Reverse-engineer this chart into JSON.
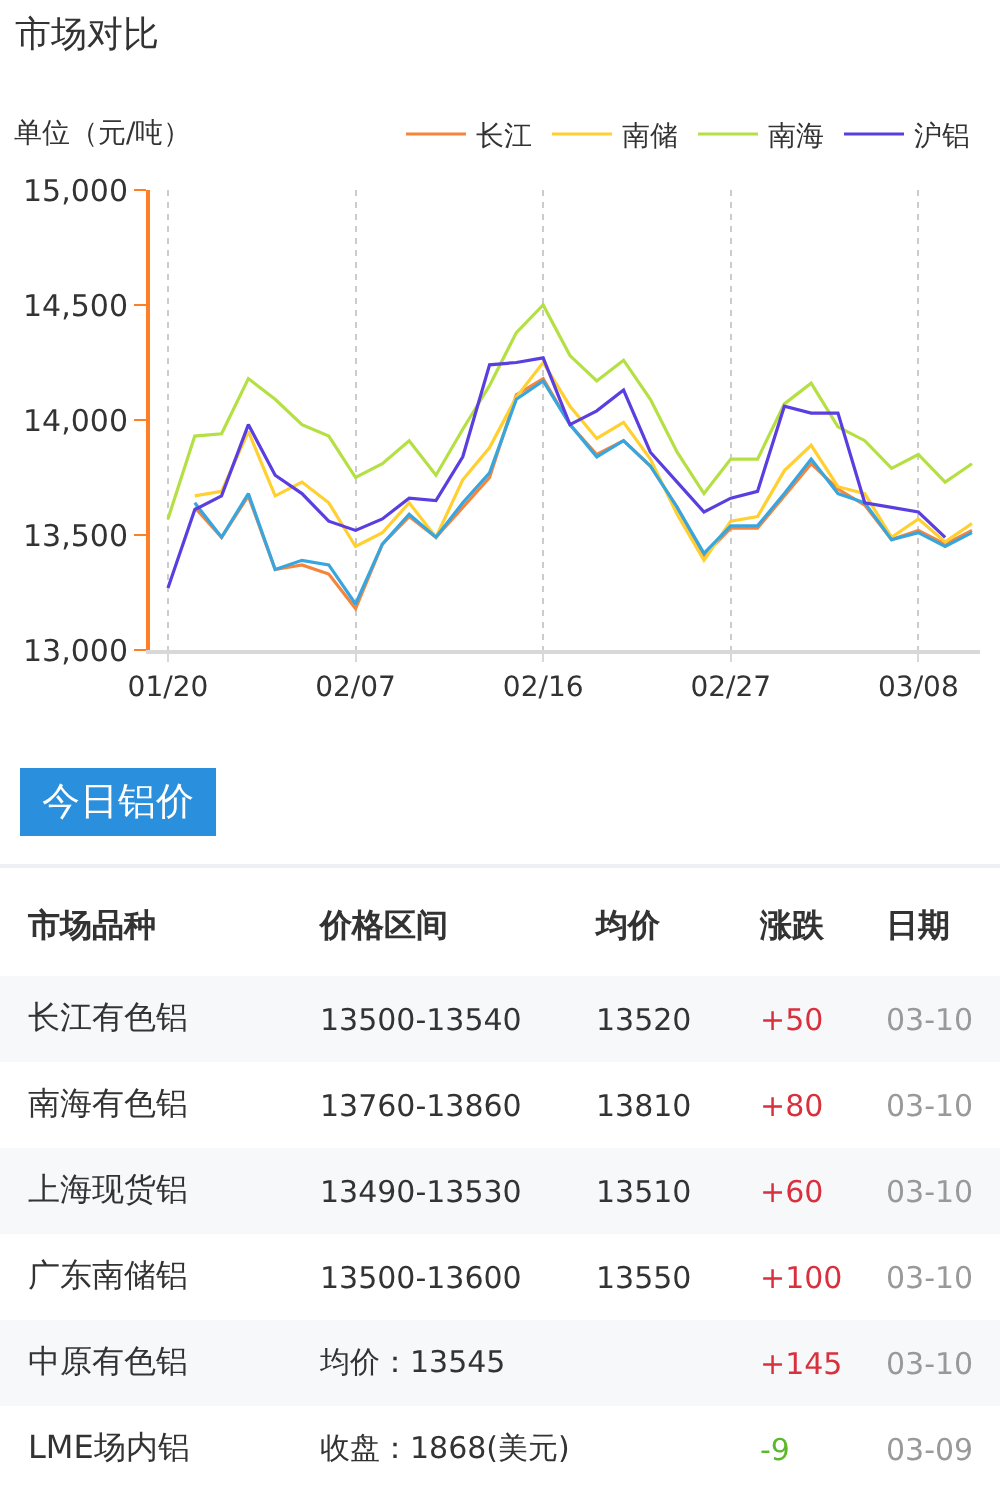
{
  "chart_data": [
    {
      "type": "line",
      "title": "市场对比",
      "ylabel": "单位（元/吨）",
      "categories": [
        "01/20",
        null,
        null,
        null,
        null,
        null,
        null,
        "02/07",
        null,
        null,
        null,
        null,
        null,
        null,
        "02/16",
        null,
        null,
        null,
        null,
        null,
        null,
        "02/27",
        null,
        null,
        null,
        null,
        null,
        null,
        "03/08",
        null,
        null
      ],
      "series": [
        {
          "name": "长江",
          "color": "#f7843c",
          "values": [
            null,
            13620,
            13490,
            13670,
            13350,
            13370,
            13330,
            13180,
            13460,
            13580,
            13490,
            13620,
            13750,
            14110,
            14180,
            13980,
            13850,
            13910,
            13800,
            13620,
            13410,
            13530,
            13530,
            13670,
            13810,
            13700,
            13630,
            13480,
            13520,
            13460,
            13520
          ]
        },
        {
          "name": "南储",
          "color": "#ffd030",
          "values": [
            null,
            13670,
            13690,
            13950,
            13670,
            13730,
            13640,
            13450,
            13510,
            13640,
            13490,
            13740,
            13880,
            14100,
            14250,
            14060,
            13920,
            13990,
            13830,
            13590,
            13390,
            13560,
            13580,
            13780,
            13890,
            13710,
            13680,
            13490,
            13570,
            13470,
            13550
          ]
        },
        {
          "name": "南海",
          "color": "#b4e044",
          "values": [
            13570,
            13930,
            13940,
            14180,
            14090,
            13980,
            13930,
            13750,
            13810,
            13910,
            13760,
            13960,
            14150,
            14380,
            14500,
            14280,
            14170,
            14260,
            14090,
            13860,
            13680,
            13830,
            13830,
            14070,
            14160,
            13970,
            13910,
            13790,
            13850,
            13730,
            13810
          ]
        },
        {
          "color": "#38a6de",
          "values": [
            null,
            13640,
            13490,
            13680,
            13350,
            13390,
            13370,
            13200,
            13460,
            13590,
            13490,
            13640,
            13770,
            14090,
            14170,
            13980,
            13840,
            13910,
            13800,
            13620,
            13420,
            13540,
            13540,
            13680,
            13830,
            13680,
            13640,
            13480,
            13510,
            13450,
            13510
          ]
        },
        {
          "name": "沪铝",
          "color": "#5a3ee0",
          "values": [
            13270,
            13610,
            13670,
            13980,
            13760,
            13680,
            13560,
            13520,
            13570,
            13660,
            13650,
            13840,
            14240,
            14250,
            14270,
            13980,
            14040,
            14130,
            13860,
            13730,
            13600,
            13660,
            13690,
            14060,
            14030,
            14030,
            13640,
            13620,
            13600,
            13490,
            null
          ]
        }
      ],
      "ylim": [
        13000,
        15000
      ],
      "yticks": [
        {
          "value": 13000,
          "label": "13,000"
        },
        {
          "value": 13500,
          "label": "13,500"
        },
        {
          "value": 14000,
          "label": "14,000"
        },
        {
          "value": 14500,
          "label": "14,500"
        },
        {
          "value": 15000,
          "label": "15,000"
        }
      ],
      "grid": "x",
      "legend": "top right",
      "line_style": "solid"
    },
    {
      "type": "other",
      "title": "今日铝价",
      "categories": [
        "市场品种",
        "价格区间",
        "均价",
        "涨跌",
        "日期"
      ],
      "y_categories": [
        "长江有色铝",
        "南海有色铝",
        "上海现货铝",
        "广东南储铝",
        "中原有色铝",
        "LME场内铝"
      ],
      "cell_labels": [
        [
          "13500-13540",
          "13520",
          "+50",
          "03-10"
        ],
        [
          "13760-13860",
          "13810",
          "+80",
          "03-10"
        ],
        [
          "13490-13530",
          "13510",
          "+60",
          "03-10"
        ],
        [
          "13500-13600",
          "13550",
          "+100",
          "03-10"
        ],
        [
          "均价：13545",
          null,
          "+145",
          "03-10"
        ],
        [
          "收盘：1868(美元)",
          null,
          "-9",
          "03-09"
        ]
      ],
      "colors": [
        "#d9303e",
        "#d9303e",
        "#d9303e",
        "#d9303e",
        "#d9303e",
        "#5cb82a"
      ]
    }
  ]
}
